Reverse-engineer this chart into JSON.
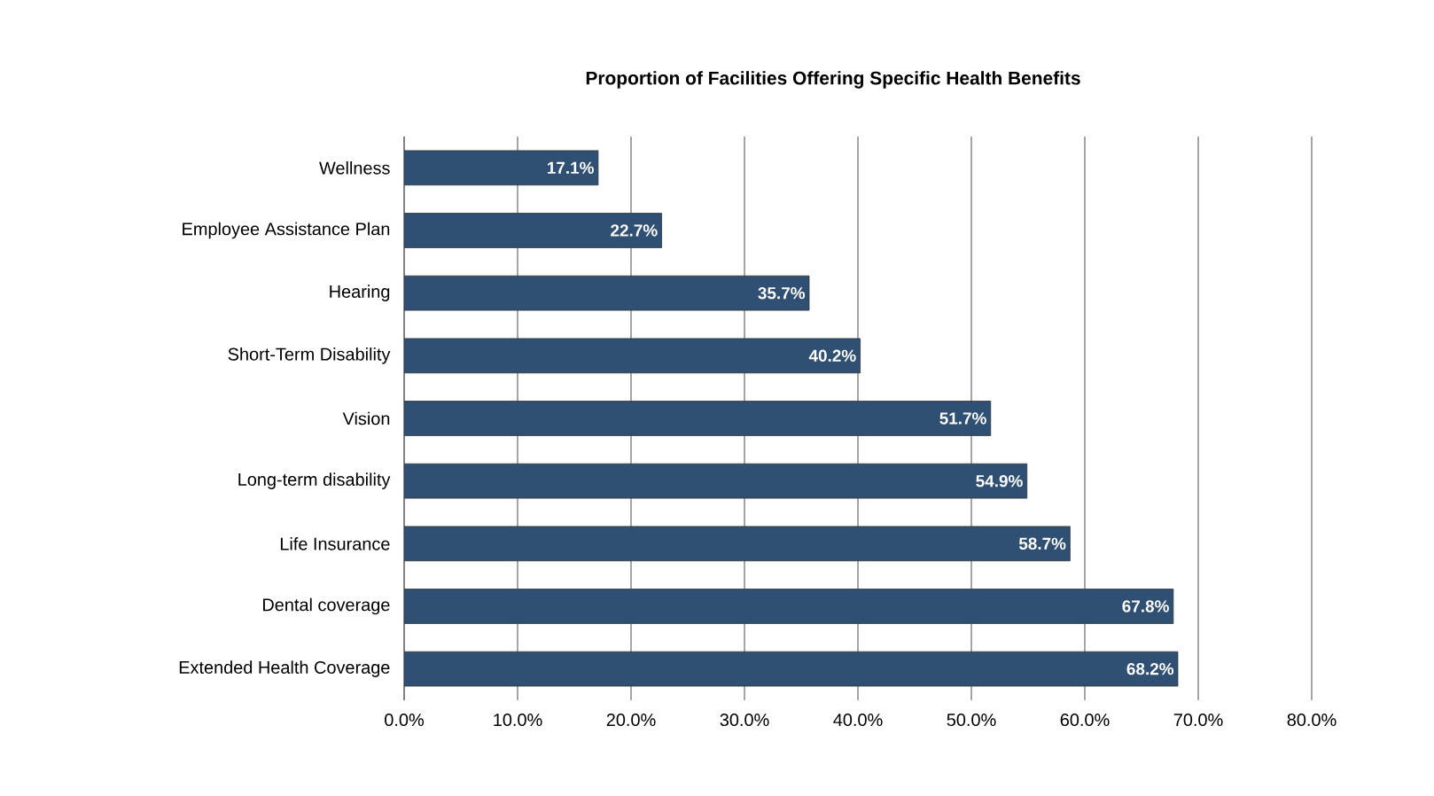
{
  "chart_data": {
    "type": "bar",
    "orientation": "horizontal",
    "title": "Proportion of Facilities Offering Specific Health Benefits",
    "categories": [
      "Wellness",
      "Employee Assistance Plan",
      "Hearing",
      "Short-Term Disability",
      "Vision",
      "Long-term disability",
      "Life Insurance",
      "Dental coverage",
      "Extended Health Coverage"
    ],
    "values": [
      17.1,
      22.7,
      35.7,
      40.2,
      51.7,
      54.9,
      58.7,
      67.8,
      68.2
    ],
    "value_labels": [
      "17.1%",
      "22.7%",
      "35.7%",
      "40.2%",
      "51.7%",
      "54.9%",
      "58.7%",
      "67.8%",
      "68.2%"
    ],
    "color": "#2f4f73",
    "xlim": [
      0,
      80
    ],
    "xticks": [
      {
        "value": 0,
        "label": "0.0%"
      },
      {
        "value": 10,
        "label": "10.0%"
      },
      {
        "value": 20,
        "label": "20.0%"
      },
      {
        "value": 30,
        "label": "30.0%"
      },
      {
        "value": 40,
        "label": "40.0%"
      },
      {
        "value": 50,
        "label": "50.0%"
      },
      {
        "value": 60,
        "label": "60.0%"
      },
      {
        "value": 70,
        "label": "70.0%"
      },
      {
        "value": 80,
        "label": "80.0%"
      }
    ],
    "grid": "x"
  }
}
